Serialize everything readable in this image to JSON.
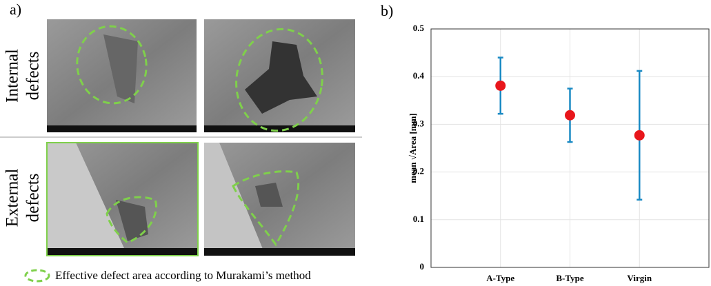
{
  "panel_a": {
    "label": "a)",
    "row_labels": [
      [
        "Internal",
        "defects"
      ],
      [
        "External",
        "defects"
      ]
    ],
    "legend": "Effective defect area according to Murakami’s method"
  },
  "chart_data": {
    "type": "errorbar",
    "panel_label": "b)",
    "y_label": "mean √Area  [mm]",
    "categories": [
      "A-Type",
      "B-Type",
      "Virgin"
    ],
    "values": [
      0.381,
      0.319,
      0.277
    ],
    "errors": [
      0.059,
      0.056,
      0.135
    ],
    "color": "#e8161b",
    "error_color": "#1a8ac4",
    "ylim": [
      0,
      0.5
    ],
    "yticks": [
      0,
      0.1,
      0.2,
      0.3,
      0.4,
      0.5
    ],
    "grid": true
  }
}
